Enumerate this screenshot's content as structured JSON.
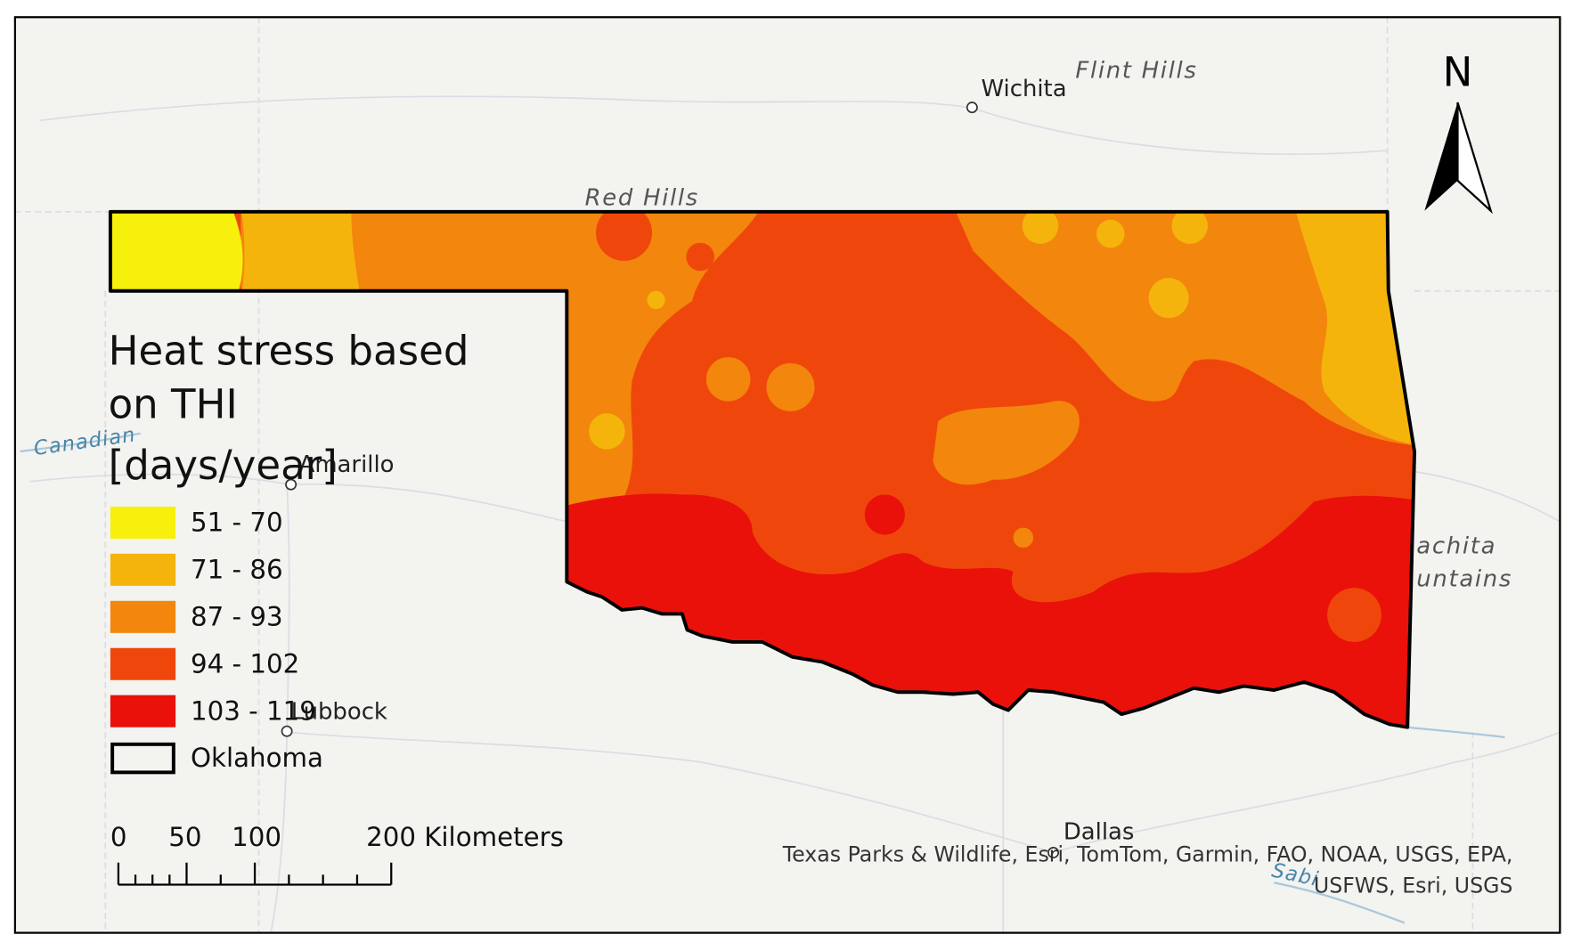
{
  "map": {
    "legend": {
      "title_lines": [
        "Heat stress based",
        "on THI",
        "[days/year]"
      ],
      "items": [
        {
          "label": "51 - 70",
          "color": "#f6f00c"
        },
        {
          "label": "71 - 86",
          "color": "#f4b40c"
        },
        {
          "label": "87 - 93",
          "color": "#f3860c"
        },
        {
          "label": "94 - 102",
          "color": "#ef470b"
        },
        {
          "label": "103 - 119",
          "color": "#e9110a"
        }
      ],
      "boundary_label": "Oklahoma"
    },
    "north_label": "N",
    "scale_bar": {
      "labels": [
        "0",
        "50",
        "100",
        "200 Kilometers"
      ]
    },
    "places": [
      "Wichita",
      "Amarillo",
      "Lubbock",
      "Dallas"
    ],
    "physical_labels": [
      "Flint Hills",
      "Red Hills",
      "achita",
      "untains"
    ],
    "water_labels": [
      "Canadian",
      "Sabi"
    ],
    "attribution": [
      "Texas Parks & Wildlife, Esri, TomTom, Garmin, FAO, NOAA, USGS, EPA,",
      "USFWS, Esri, USGS"
    ]
  }
}
